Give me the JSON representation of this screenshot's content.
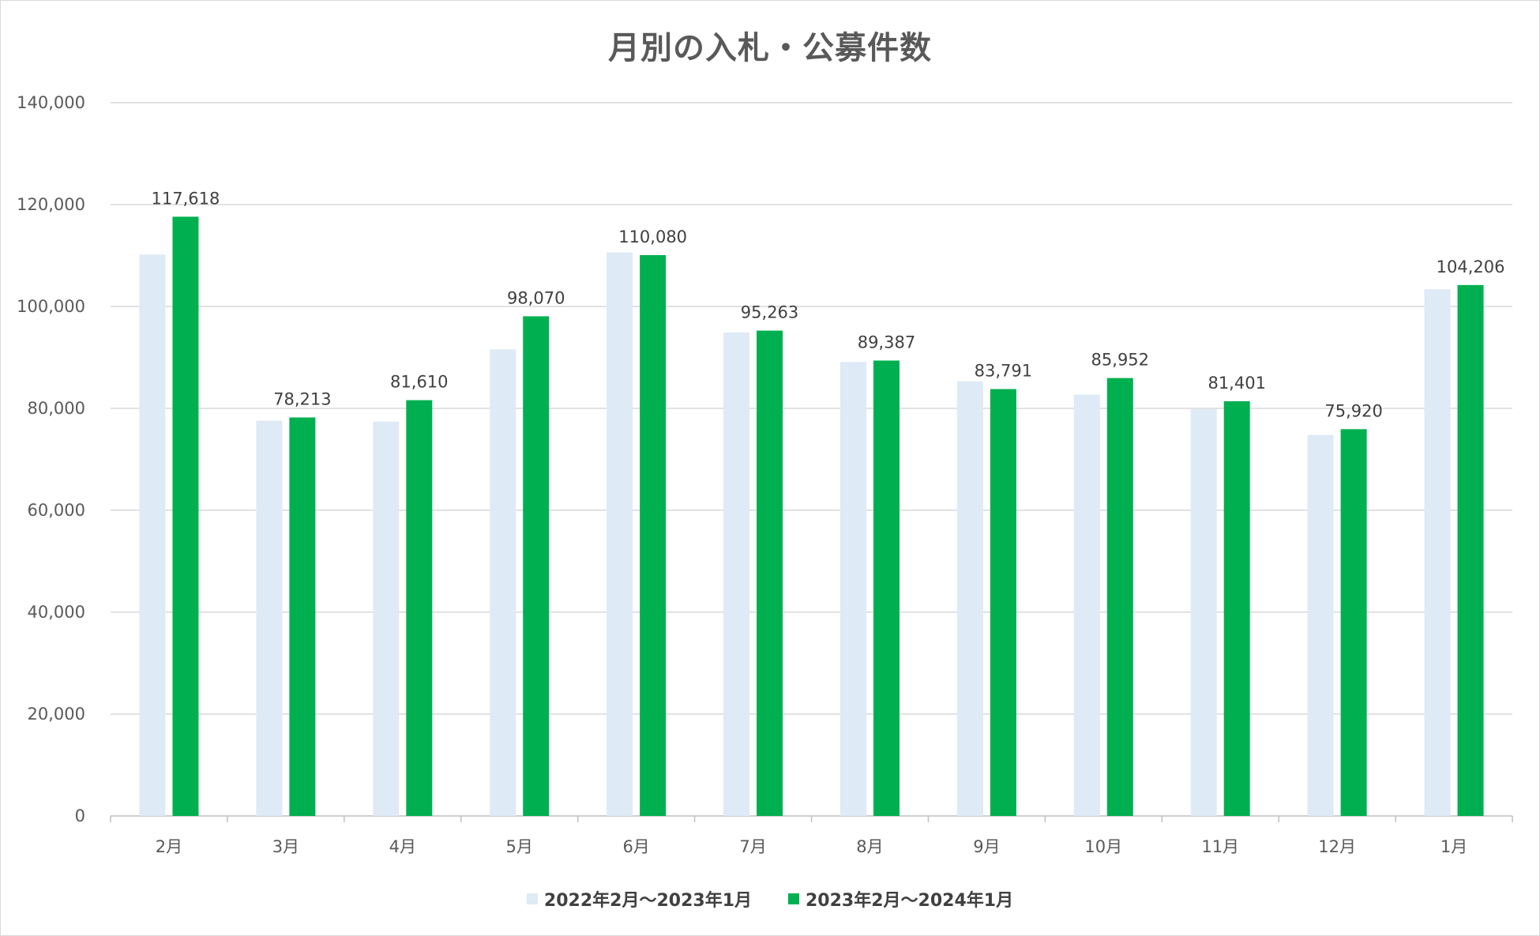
{
  "chart_data": {
    "type": "bar",
    "title": "月別の入札・公募件数",
    "categories": [
      "2月",
      "3月",
      "4月",
      "5月",
      "6月",
      "7月",
      "8月",
      "9月",
      "10月",
      "11月",
      "12月",
      "1月"
    ],
    "series": [
      {
        "name": "2022年2月～2023年1月",
        "color": "#deeaf6",
        "values": [
          110200,
          77600,
          77400,
          91600,
          110600,
          94900,
          89100,
          85300,
          82700,
          79900,
          74800,
          103400
        ]
      },
      {
        "name": "2023年2月～2024年1月",
        "color": "#00b050",
        "values": [
          117618,
          78213,
          81610,
          98070,
          110080,
          95263,
          89387,
          83791,
          85952,
          81401,
          75920,
          104206
        ],
        "data_labels": [
          "117,618",
          "78,213",
          "81,610",
          "98,070",
          "110,080",
          "95,263",
          "89,387",
          "83,791",
          "85,952",
          "81,401",
          "75,920",
          "104,206"
        ]
      }
    ],
    "ylim": [
      0,
      140000
    ],
    "yticks": [
      0,
      20000,
      40000,
      60000,
      80000,
      100000,
      120000,
      140000
    ],
    "ytick_labels": [
      "0",
      "20,000",
      "40,000",
      "60,000",
      "80,000",
      "100,000",
      "120,000",
      "140,000"
    ],
    "grid": true,
    "legend_position": "bottom"
  }
}
